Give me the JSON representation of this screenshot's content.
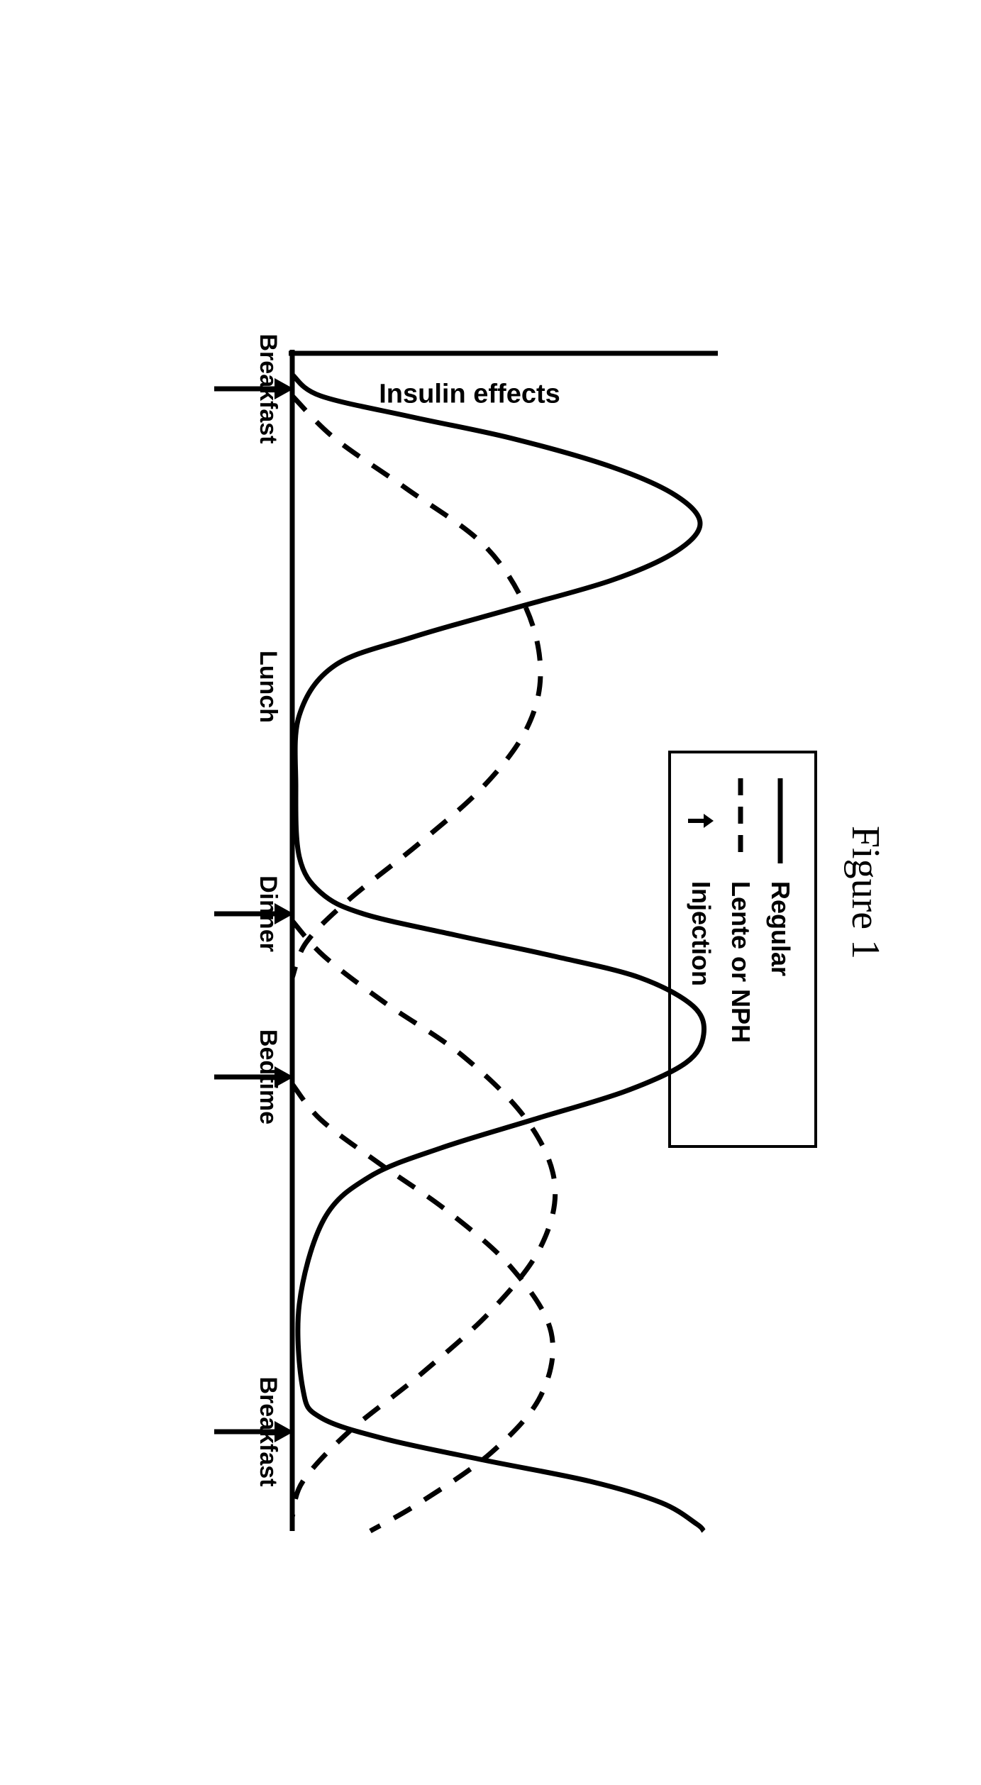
{
  "figure_title": "Figure 1",
  "chart": {
    "type": "line",
    "y_label": "Insulin effects",
    "x_ticks": [
      {
        "label": "Breakfast",
        "pos": 90,
        "arrow": true
      },
      {
        "label": "Lunch",
        "pos": 510,
        "arrow": false
      },
      {
        "label": "Dinner",
        "pos": 830,
        "arrow": true
      },
      {
        "label": "Bedtime",
        "pos": 1060,
        "arrow": true
      },
      {
        "label": "Breakfast",
        "pos": 1560,
        "arrow": true
      }
    ],
    "x_range": [
      0,
      1700
    ],
    "y_range": [
      0,
      600
    ],
    "line_color": "#000000",
    "line_width_regular": 7,
    "line_width_dashed": 7,
    "dash_pattern": "28 22",
    "axis_width": 7,
    "background_color": "#ffffff",
    "series": {
      "regular": {
        "style": "solid",
        "points": [
          [
            70,
            600
          ],
          [
            100,
            560
          ],
          [
            130,
            430
          ],
          [
            160,
            290
          ],
          [
            200,
            150
          ],
          [
            240,
            60
          ],
          [
            280,
            25
          ],
          [
            320,
            60
          ],
          [
            360,
            150
          ],
          [
            400,
            290
          ],
          [
            440,
            430
          ],
          [
            480,
            540
          ],
          [
            550,
            590
          ],
          [
            650,
            595
          ],
          [
            750,
            590
          ],
          [
            800,
            560
          ],
          [
            830,
            500
          ],
          [
            860,
            370
          ],
          [
            890,
            230
          ],
          [
            920,
            110
          ],
          [
            960,
            35
          ],
          [
            1000,
            20
          ],
          [
            1040,
            45
          ],
          [
            1080,
            130
          ],
          [
            1120,
            260
          ],
          [
            1160,
            390
          ],
          [
            1200,
            490
          ],
          [
            1260,
            555
          ],
          [
            1380,
            590
          ],
          [
            1500,
            585
          ],
          [
            1540,
            560
          ],
          [
            1570,
            470
          ],
          [
            1600,
            330
          ],
          [
            1630,
            180
          ],
          [
            1660,
            80
          ],
          [
            1690,
            30
          ],
          [
            1700,
            20
          ]
        ]
      },
      "lente_humps": [
        {
          "points": [
            [
              100,
              600
            ],
            [
              160,
              540
            ],
            [
              230,
              440
            ],
            [
              310,
              330
            ],
            [
              400,
              270
            ],
            [
              490,
              250
            ],
            [
              570,
              270
            ],
            [
              650,
              330
            ],
            [
              730,
              420
            ],
            [
              810,
              520
            ],
            [
              870,
              580
            ],
            [
              920,
              600
            ]
          ]
        },
        {
          "points": [
            [
              840,
              600
            ],
            [
              890,
              555
            ],
            [
              955,
              470
            ],
            [
              1030,
              360
            ],
            [
              1120,
              270
            ],
            [
              1210,
              230
            ],
            [
              1300,
              250
            ],
            [
              1390,
              320
            ],
            [
              1480,
              420
            ],
            [
              1560,
              520
            ],
            [
              1630,
              585
            ],
            [
              1680,
              600
            ]
          ]
        },
        {
          "points": [
            [
              1070,
              600
            ],
            [
              1120,
              560
            ],
            [
              1180,
              480
            ],
            [
              1250,
              380
            ],
            [
              1330,
              290
            ],
            [
              1420,
              235
            ],
            [
              1510,
              250
            ],
            [
              1590,
              320
            ],
            [
              1660,
              420
            ],
            [
              1700,
              490
            ]
          ]
        }
      ]
    },
    "legend": {
      "items": [
        {
          "symbol": "solid",
          "label": "Regular"
        },
        {
          "symbol": "dashed",
          "label": "Lente or NPH"
        },
        {
          "symbol": "arrow",
          "label": "Injection"
        }
      ]
    }
  }
}
